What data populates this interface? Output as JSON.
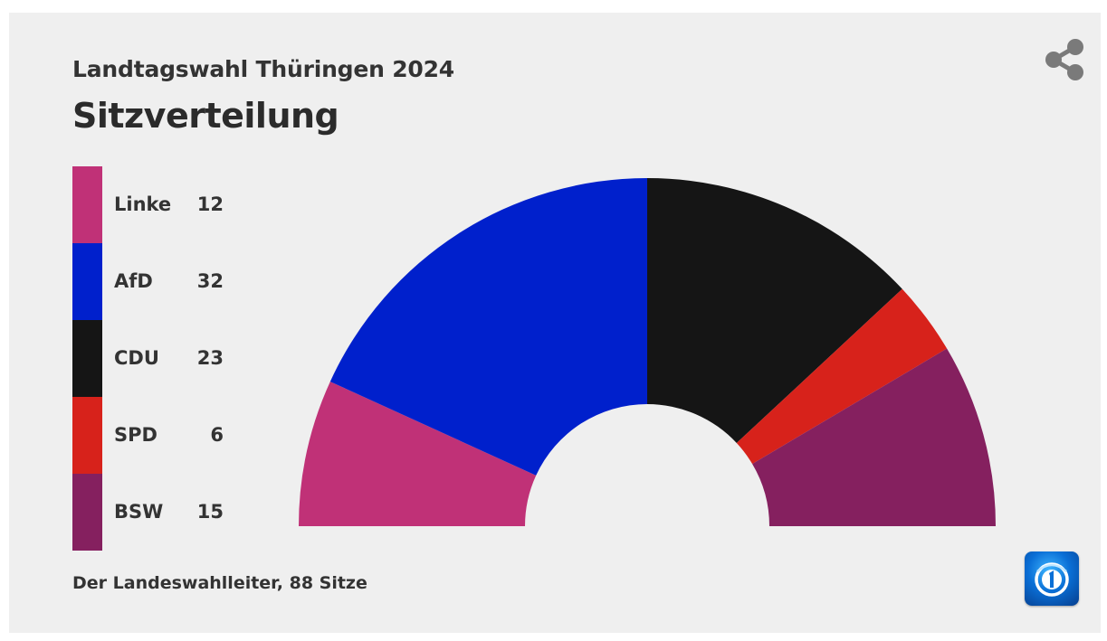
{
  "header": {
    "subtitle": "Landtagswahl Thüringen 2024",
    "title": "Sitzverteilung"
  },
  "footer": {
    "source": "Der Landeswahlleiter, 88 Sitze"
  },
  "icons": {
    "share": "share-icon",
    "logo": "tagesschau-logo-icon"
  },
  "chart_data": {
    "type": "pie",
    "subtype": "parliament-semicircle",
    "title": "Sitzverteilung",
    "subtitle": "Landtagswahl Thüringen 2024",
    "total_seats": 88,
    "legend_placement": "left",
    "series": [
      {
        "name": "Linke",
        "value": 12,
        "color": "#c03177"
      },
      {
        "name": "AfD",
        "value": 32,
        "color": "#0020cc"
      },
      {
        "name": "CDU",
        "value": 23,
        "color": "#151515"
      },
      {
        "name": "SPD",
        "value": 6,
        "color": "#d7221b"
      },
      {
        "name": "BSW",
        "value": 15,
        "color": "#85205f"
      }
    ]
  }
}
